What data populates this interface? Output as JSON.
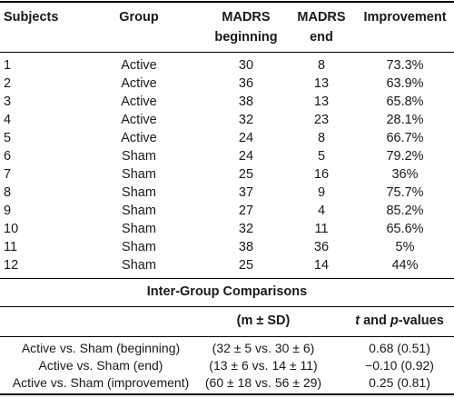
{
  "table": {
    "headers": {
      "subjects": "Subjects",
      "group": "Group",
      "madrs_beginning_1": "MADRS",
      "madrs_beginning_2": "beginning",
      "madrs_end_1": "MADRS",
      "madrs_end_2": "end",
      "improvement": "Improvement"
    },
    "rows": [
      {
        "subject": "1",
        "group": "Active",
        "beginning": "30",
        "end": "8",
        "improvement": "73.3%"
      },
      {
        "subject": "2",
        "group": "Active",
        "beginning": "36",
        "end": "13",
        "improvement": "63.9%"
      },
      {
        "subject": "3",
        "group": "Active",
        "beginning": "38",
        "end": "13",
        "improvement": "65.8%"
      },
      {
        "subject": "4",
        "group": "Active",
        "beginning": "32",
        "end": "23",
        "improvement": "28.1%"
      },
      {
        "subject": "5",
        "group": "Active",
        "beginning": "24",
        "end": "8",
        "improvement": "66.7%"
      },
      {
        "subject": "6",
        "group": "Sham",
        "beginning": "24",
        "end": "5",
        "improvement": "79.2%"
      },
      {
        "subject": "7",
        "group": "Sham",
        "beginning": "25",
        "end": "16",
        "improvement": "36%"
      },
      {
        "subject": "8",
        "group": "Sham",
        "beginning": "37",
        "end": "9",
        "improvement": "75.7%"
      },
      {
        "subject": "9",
        "group": "Sham",
        "beginning": "27",
        "end": "4",
        "improvement": "85.2%"
      },
      {
        "subject": "10",
        "group": "Sham",
        "beginning": "32",
        "end": "11",
        "improvement": "65.6%"
      },
      {
        "subject": "11",
        "group": "Sham",
        "beginning": "38",
        "end": "36",
        "improvement": "5%"
      },
      {
        "subject": "12",
        "group": "Sham",
        "beginning": "25",
        "end": "14",
        "improvement": "44%"
      }
    ]
  },
  "comparisons": {
    "title": "Inter-Group Comparisons",
    "col_mean_sd": "(m ± SD)",
    "col_stats_t": "t",
    "col_stats_and": " and ",
    "col_stats_p": "p",
    "col_stats_suffix": "-values",
    "rows": [
      {
        "label": "Active vs. Sham (beginning)",
        "mean_sd": "(32 ± 5 vs. 30 ± 6)",
        "stats": "0.68 (0.51)"
      },
      {
        "label": "Active vs. Sham (end)",
        "mean_sd": "(13 ± 6 vs. 14 ± 11)",
        "stats": "−0.10 (0.92)"
      },
      {
        "label": "Active vs. Sham (improvement)",
        "mean_sd": "(60 ± 18 vs. 56 ± 29)",
        "stats": "0.25 (0.81)"
      }
    ]
  }
}
